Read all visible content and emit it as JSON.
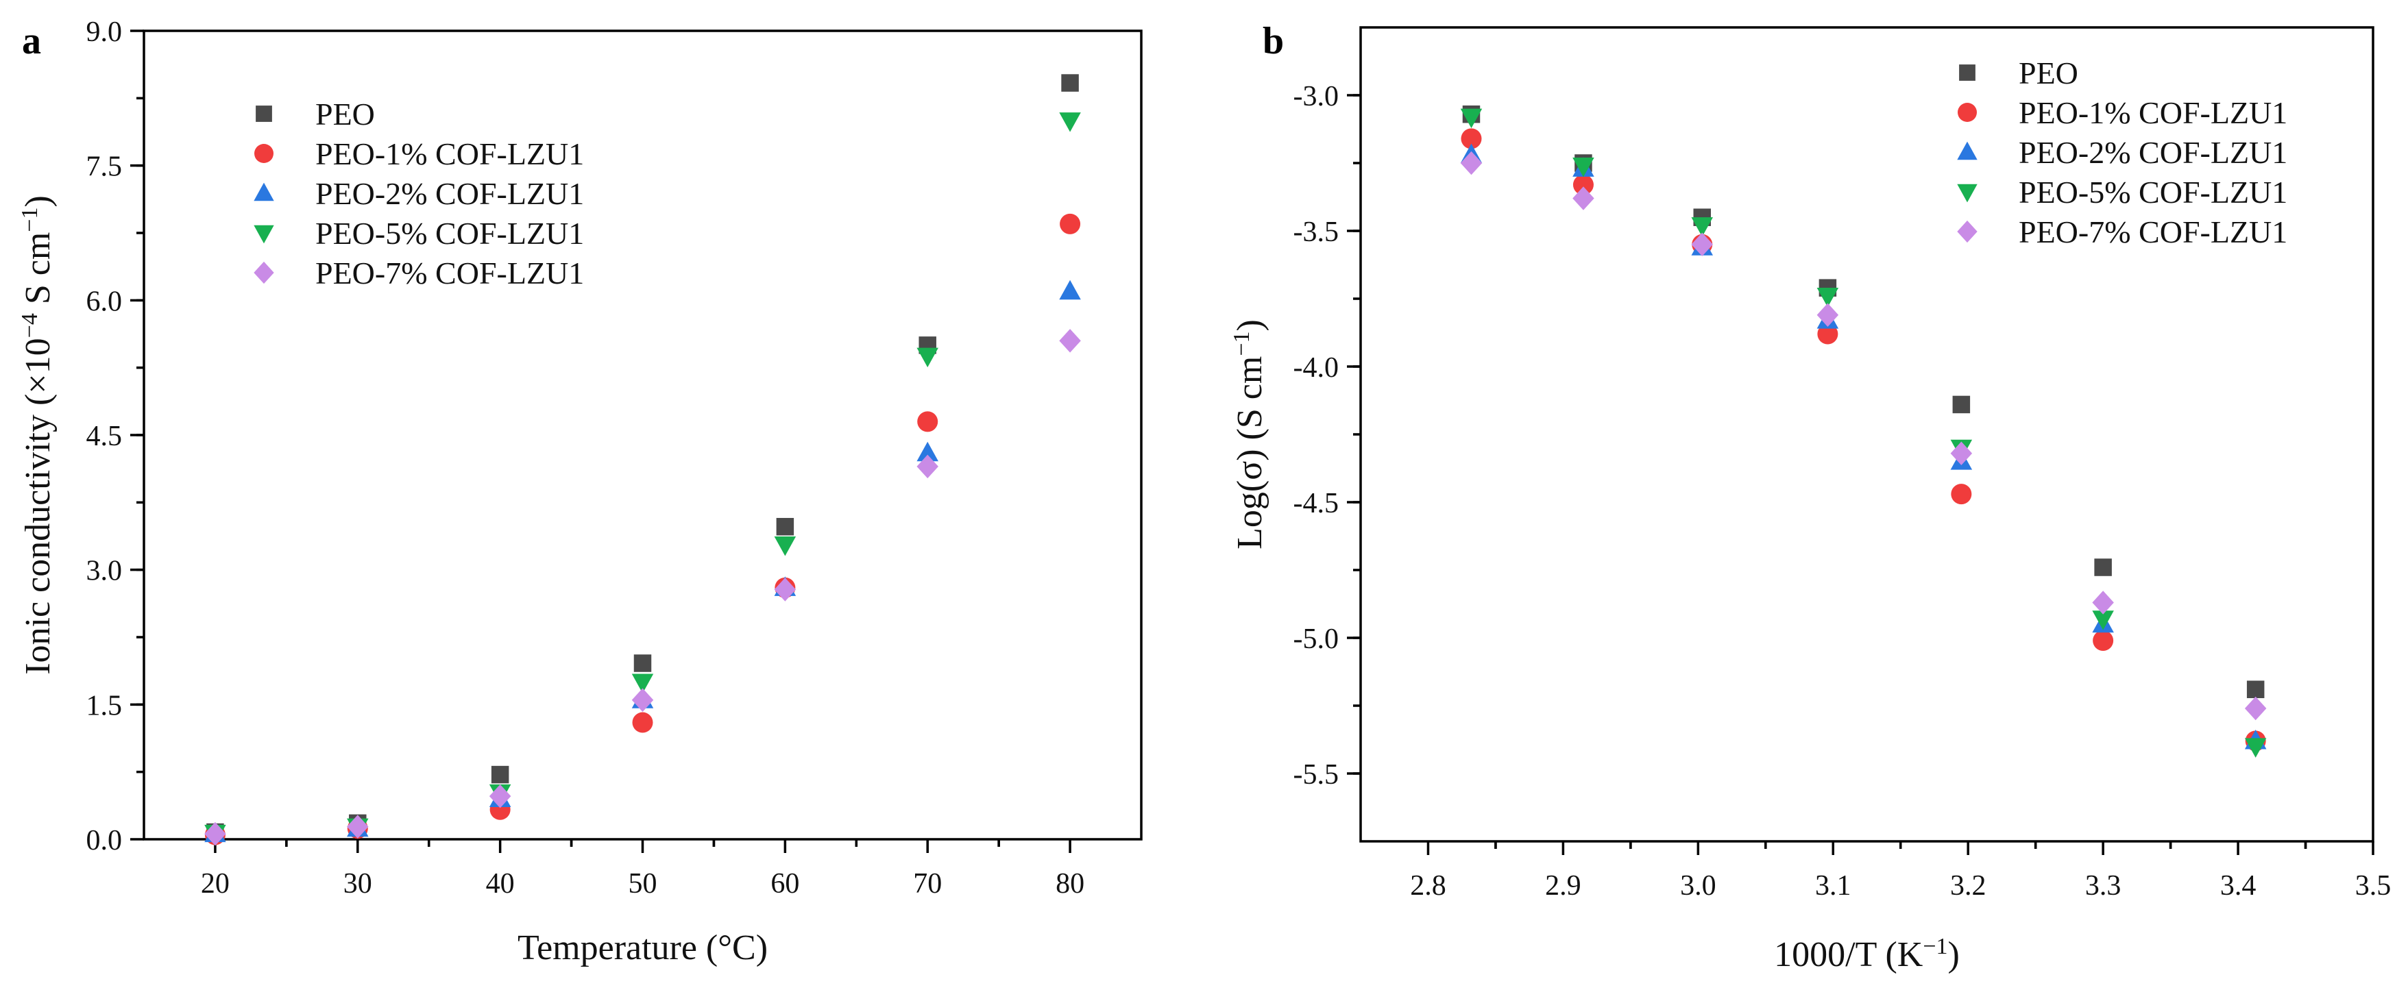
{
  "colors": {
    "PEO": "#4a4a4a",
    "PEO-1% COF-LZU1": "#f03c3c",
    "PEO-2% COF-LZU1": "#2a78e0",
    "PEO-5% COF-LZU1": "#18b050",
    "PEO-7% COF-LZU1": "#c98be6"
  },
  "markers": {
    "PEO": "square-icon",
    "PEO-1% COF-LZU1": "circle-icon",
    "PEO-2% COF-LZU1": "triangle-up-icon",
    "PEO-5% COF-LZU1": "triangle-down-icon",
    "PEO-7% COF-LZU1": "diamond-icon"
  },
  "chart_data": [
    {
      "panel": "a",
      "type": "scatter",
      "xlabel": "Temperature (°C)",
      "ylabel": "Ionic conductivity (×10",
      "ylabel_sup": "−4",
      "ylabel_tail": " S cm",
      "ylabel_sup2": "−1",
      "ylabel_end": ")",
      "xlim": [
        15,
        85
      ],
      "ylim": [
        0,
        9.0
      ],
      "xticks": [
        20,
        30,
        40,
        50,
        60,
        70,
        80
      ],
      "xtick_labels": [
        "20",
        "30",
        "40",
        "50",
        "60",
        "70",
        "80"
      ],
      "yticks": [
        0,
        1.5,
        3.0,
        4.5,
        6.0,
        7.5,
        9.0
      ],
      "ytick_labels": [
        "0.0",
        "1.5",
        "3.0",
        "4.5",
        "6.0",
        "7.5",
        "9.0"
      ],
      "legend_position": "top-left",
      "x": [
        20,
        30,
        40,
        50,
        60,
        70,
        80
      ],
      "series": [
        {
          "name": "PEO",
          "values": [
            0.08,
            0.18,
            0.72,
            1.96,
            3.48,
            5.5,
            8.42
          ]
        },
        {
          "name": "PEO-1% COF-LZU1",
          "values": [
            0.05,
            0.12,
            0.33,
            1.3,
            2.8,
            4.65,
            6.85
          ]
        },
        {
          "name": "PEO-2% COF-LZU1",
          "values": [
            0.06,
            0.12,
            0.45,
            1.55,
            2.8,
            4.3,
            6.1
          ]
        },
        {
          "name": "PEO-5% COF-LZU1",
          "values": [
            0.07,
            0.14,
            0.52,
            1.75,
            3.28,
            5.38,
            8.0
          ]
        },
        {
          "name": "PEO-7% COF-LZU1",
          "values": [
            0.06,
            0.14,
            0.48,
            1.55,
            2.78,
            4.15,
            5.55
          ]
        }
      ]
    },
    {
      "panel": "b",
      "type": "scatter",
      "xlabel": "1000/T (K",
      "xlabel_sup": "−1",
      "xlabel_end": ")",
      "ylabel": "Log(σ) (S cm",
      "ylabel_sup": "−1",
      "ylabel_end": ")",
      "xlim": [
        2.75,
        3.5
      ],
      "ylim": [
        -5.75,
        -2.75
      ],
      "xticks": [
        2.8,
        2.9,
        3.0,
        3.1,
        3.2,
        3.3,
        3.4,
        3.5
      ],
      "xtick_labels": [
        "2.8",
        "2.9",
        "3.0",
        "3.1",
        "3.2",
        "3.3",
        "3.4",
        "3.5"
      ],
      "yticks": [
        -3.0,
        -3.5,
        -4.0,
        -4.5,
        -5.0,
        -5.5
      ],
      "ytick_labels": [
        "-3.0",
        "-3.5",
        "-4.0",
        "-4.5",
        "-5.0",
        "-5.5"
      ],
      "legend_position": "top-right",
      "x": [
        2.832,
        2.915,
        3.003,
        3.096,
        3.195,
        3.3,
        3.413
      ],
      "series": [
        {
          "name": "PEO",
          "values": [
            -3.07,
            -3.25,
            -3.45,
            -3.71,
            -4.14,
            -4.74,
            -5.19
          ]
        },
        {
          "name": "PEO-1% COF-LZU1",
          "values": [
            -3.16,
            -3.33,
            -3.55,
            -3.88,
            -4.47,
            -5.01,
            -5.38
          ]
        },
        {
          "name": "PEO-2% COF-LZU1",
          "values": [
            -3.22,
            -3.27,
            -3.56,
            -3.83,
            -4.35,
            -4.95,
            -5.38
          ]
        },
        {
          "name": "PEO-5% COF-LZU1",
          "values": [
            -3.08,
            -3.26,
            -3.48,
            -3.74,
            -4.3,
            -4.93,
            -5.4
          ]
        },
        {
          "name": "PEO-7% COF-LZU1",
          "values": [
            -3.25,
            -3.38,
            -3.55,
            -3.81,
            -4.32,
            -4.87,
            -5.26
          ]
        }
      ]
    }
  ]
}
